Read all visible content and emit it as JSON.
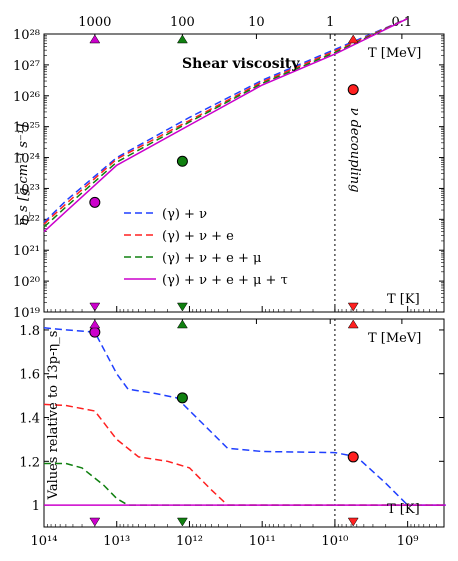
{
  "chart_data": [
    {
      "type": "line",
      "title": "Shear viscosity",
      "ylabel": "η_s [g cm⁻¹ s⁻¹]",
      "y_scale": "log",
      "ylim_exp": [
        19,
        28
      ],
      "y_ticks": [
        {
          "exp": 19,
          "label": "10¹⁹"
        },
        {
          "exp": 20,
          "label": "10²⁰"
        },
        {
          "exp": 21,
          "label": "10²¹"
        },
        {
          "exp": 22,
          "label": "10²²"
        },
        {
          "exp": 23,
          "label": "10²³"
        },
        {
          "exp": 24,
          "label": "10²⁴"
        },
        {
          "exp": 25,
          "label": "10²⁵"
        },
        {
          "exp": 26,
          "label": "10²⁶"
        },
        {
          "exp": 27,
          "label": "10²⁷"
        },
        {
          "exp": 28,
          "label": "10²⁸"
        }
      ],
      "top_axis_label": "T [MeV]",
      "bottom_axis_label": "T [K]",
      "annotation": "ν decoupling",
      "legend_position": "lower-center",
      "series": [
        {
          "name": "(γ) + ν",
          "color": "#1f3fff",
          "dash": "dashed",
          "points": [
            [
              100000000000000.0,
              21.9
            ],
            [
              50000000000000.0,
              22.6
            ],
            [
              10000000000000.0,
              24.0
            ],
            [
              1000000000000.0,
              25.3
            ],
            [
              100000000000.0,
              26.5
            ],
            [
              10000000000.0,
              27.5
            ],
            [
              1000000000.0,
              28.5
            ]
          ]
        },
        {
          "name": "(γ) + ν + e",
          "color": "#ff2020",
          "dash": "dashed",
          "points": [
            [
              100000000000000.0,
              21.85
            ],
            [
              50000000000000.0,
              22.5
            ],
            [
              10000000000000.0,
              23.95
            ],
            [
              1000000000000.0,
              25.2
            ],
            [
              100000000000.0,
              26.45
            ],
            [
              10000000000.0,
              27.45
            ],
            [
              1000000000.0,
              28.5
            ]
          ]
        },
        {
          "name": "(γ) + ν + e + μ",
          "color": "#108010",
          "dash": "dashed",
          "points": [
            [
              100000000000000.0,
              21.75
            ],
            [
              50000000000000.0,
              22.4
            ],
            [
              10000000000000.0,
              23.85
            ],
            [
              1000000000000.0,
              25.15
            ],
            [
              100000000000.0,
              26.4
            ],
            [
              10000000000.0,
              27.4
            ],
            [
              1000000000.0,
              28.5
            ]
          ]
        },
        {
          "name": "(γ) + ν + e + μ + τ",
          "color": "#cc00cc",
          "dash": "solid",
          "points": [
            [
              100000000000000.0,
              21.6
            ],
            [
              50000000000000.0,
              22.25
            ],
            [
              10000000000000.0,
              23.75
            ],
            [
              1000000000000.0,
              25.05
            ],
            [
              100000000000.0,
              26.35
            ],
            [
              10000000000.0,
              27.35
            ],
            [
              1000000000.0,
              28.5
            ]
          ]
        }
      ],
      "markers": [
        {
          "x": 20000000000000.0,
          "y_exp": 22.55,
          "color": "#cc00cc"
        },
        {
          "x": 1250000000000.0,
          "y_exp": 23.88,
          "color": "#108010"
        },
        {
          "x": 5600000000.0,
          "y_exp": 26.2,
          "color": "#ff2020"
        }
      ]
    },
    {
      "type": "line",
      "ylabel": "Values relative to 13p-η_s",
      "ylim": [
        0.9,
        1.85
      ],
      "y_ticks": [
        1,
        1.2,
        1.4,
        1.6,
        1.8
      ],
      "y_tick_labels": [
        "1",
        "1.2",
        "1.4",
        "1.6",
        "1.8"
      ],
      "top_axis_label": "T [MeV]",
      "bottom_axis_label": "T [K]",
      "x_scale": "log",
      "x_ticks": [
        {
          "exp": 14,
          "label": "10¹⁴"
        },
        {
          "exp": 13,
          "label": "10¹³"
        },
        {
          "exp": 12,
          "label": "10¹²"
        },
        {
          "exp": 11,
          "label": "10¹¹"
        },
        {
          "exp": 10,
          "label": "10¹⁰"
        },
        {
          "exp": 9,
          "label": "10⁹"
        }
      ],
      "series": [
        {
          "name": "(γ) + ν",
          "color": "#1f3fff",
          "dash": "dashed",
          "points": [
            [
              100000000000000.0,
              1.81
            ],
            [
              50000000000000.0,
              1.8
            ],
            [
              20000000000000.0,
              1.79
            ],
            [
              10000000000000.0,
              1.6
            ],
            [
              7000000000000.0,
              1.53
            ],
            [
              3000000000000.0,
              1.51
            ],
            [
              1500000000000.0,
              1.49
            ],
            [
              800000000000.0,
              1.4
            ],
            [
              300000000000.0,
              1.26
            ],
            [
              100000000000.0,
              1.245
            ],
            [
              10000000000.0,
              1.24
            ],
            [
              5000000000.0,
              1.22
            ],
            [
              2000000000.0,
              1.1
            ],
            [
              1000000000.0,
              1.0
            ],
            [
              300000000.0,
              1.0
            ]
          ]
        },
        {
          "name": "(γ) + ν + e",
          "color": "#ff2020",
          "dash": "dashed",
          "points": [
            [
              100000000000000.0,
              1.46
            ],
            [
              50000000000000.0,
              1.455
            ],
            [
              20000000000000.0,
              1.43
            ],
            [
              10000000000000.0,
              1.3
            ],
            [
              5000000000000.0,
              1.22
            ],
            [
              2000000000000.0,
              1.2
            ],
            [
              1000000000000.0,
              1.17
            ],
            [
              500000000000.0,
              1.07
            ],
            [
              300000000000.0,
              1.0
            ],
            [
              300000000.0,
              1.0
            ]
          ]
        },
        {
          "name": "(γ) + ν + e + μ",
          "color": "#108010",
          "dash": "dashed",
          "points": [
            [
              100000000000000.0,
              1.19
            ],
            [
              50000000000000.0,
              1.19
            ],
            [
              30000000000000.0,
              1.17
            ],
            [
              15000000000000.0,
              1.09
            ],
            [
              10000000000000.0,
              1.03
            ],
            [
              7000000000000.0,
              1.0
            ],
            [
              300000000.0,
              1.0
            ]
          ]
        },
        {
          "name": "(γ) + ν + e + μ + τ",
          "color": "#cc00cc",
          "dash": "solid",
          "points": [
            [
              100000000000000.0,
              1.0
            ],
            [
              300000000.0,
              1.0
            ]
          ]
        }
      ],
      "markers": [
        {
          "x": 20000000000000.0,
          "y": 1.79,
          "color": "#cc00cc"
        },
        {
          "x": 1250000000000.0,
          "y": 1.49,
          "color": "#108010"
        },
        {
          "x": 5600000000.0,
          "y": 1.22,
          "color": "#ff2020"
        }
      ]
    }
  ],
  "top_axis_ticks": [
    {
      "label": "1000",
      "x": 20000000000000.0
    },
    {
      "label": "100",
      "x": 1250000000000.0
    },
    {
      "label": "10",
      "x": 120000000000.0
    },
    {
      "label": "1",
      "x": 11600000000.0
    },
    {
      "label": "0.1",
      "x": 1200000000.0
    }
  ],
  "decoupling_x": 10000000000.0,
  "x_range_exp": [
    14,
    8.5
  ],
  "triangle_markers": [
    {
      "x": 20000000000000.0,
      "color": "#cc00cc"
    },
    {
      "x": 1250000000000.0,
      "color": "#108010"
    },
    {
      "x": 5600000000.0,
      "color": "#ff2020"
    }
  ]
}
